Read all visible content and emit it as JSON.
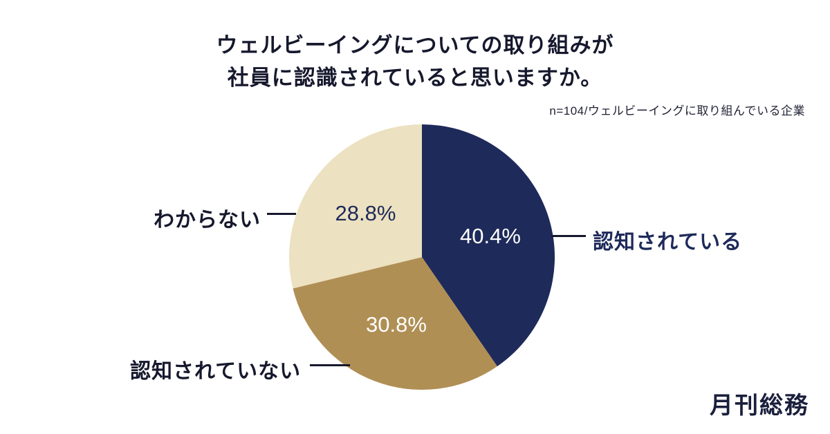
{
  "title": {
    "line1": "ウェルビーイングについての取り組みが",
    "line2": "社員に認識されていると思いますか。",
    "full": "ウェルビーイングについての取り組みが社員に認識されていると思いますか。"
  },
  "subtitle": "n=104/ウェルビーイングに取り組んでいる企業",
  "logo": "月刊総務",
  "colors": {
    "navy": "#1e2a5a",
    "gold": "#b08f55",
    "cream": "#ece1c0",
    "text_dark": "#16182d",
    "leader_line": "#16182d"
  },
  "chart_data": {
    "type": "pie",
    "title": "ウェルビーイングについての取り組みが社員に認識されていると思いますか。",
    "note": "n=104/ウェルビーイングに取り組んでいる企業",
    "labels": [
      "認知されている",
      "認知されていない",
      "わからない"
    ],
    "values": [
      40.4,
      30.8,
      28.8
    ],
    "value_labels": [
      "40.4%",
      "30.8%",
      "28.8%"
    ],
    "colors": [
      "#1e2a5a",
      "#b08f55",
      "#ece1c0"
    ],
    "value_colors": [
      "#ffffff",
      "#ffffff",
      "#1e2a5a"
    ],
    "start_angle_deg": 0,
    "direction": "clockwise",
    "legend_position": "outside-leader-lines"
  }
}
